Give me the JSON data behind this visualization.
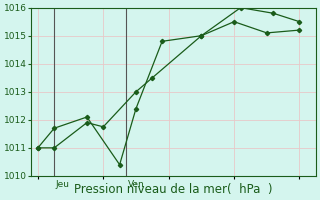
{
  "line1_x": [
    0,
    0.5,
    1.5,
    2.0,
    3.0,
    3.5,
    5.0,
    6.0,
    7.0,
    8.0
  ],
  "line1_y": [
    1011.0,
    1011.0,
    1011.9,
    1011.75,
    1013.0,
    1013.5,
    1015.0,
    1015.5,
    1015.1,
    1015.2
  ],
  "line2_x": [
    0,
    0.5,
    1.5,
    2.5,
    3.0,
    3.8,
    5.0,
    6.2,
    7.2,
    8.0
  ],
  "line2_y": [
    1011.0,
    1011.7,
    1012.1,
    1010.4,
    1012.4,
    1014.8,
    1015.0,
    1016.0,
    1015.8,
    1015.5
  ],
  "line_color": "#1a5c1a",
  "background_color": "#d4f5ee",
  "grid_color": "#e8c8c8",
  "vline_x1": 0.5,
  "vline_x2": 2.7,
  "vline_label1": "Jeu",
  "vline_label2": "Ven",
  "vline_color": "#555555",
  "xlim": [
    -0.2,
    8.5
  ],
  "ylim": [
    1010,
    1016
  ],
  "yticks": [
    1010,
    1011,
    1012,
    1013,
    1014,
    1015,
    1016
  ],
  "xlabel": "Pression niveau de la mer(  hPa  )",
  "xlabel_color": "#1a5c1a",
  "xlabel_fontsize": 8.5,
  "tick_fontsize": 6.5,
  "day_label_fontsize": 6.5
}
